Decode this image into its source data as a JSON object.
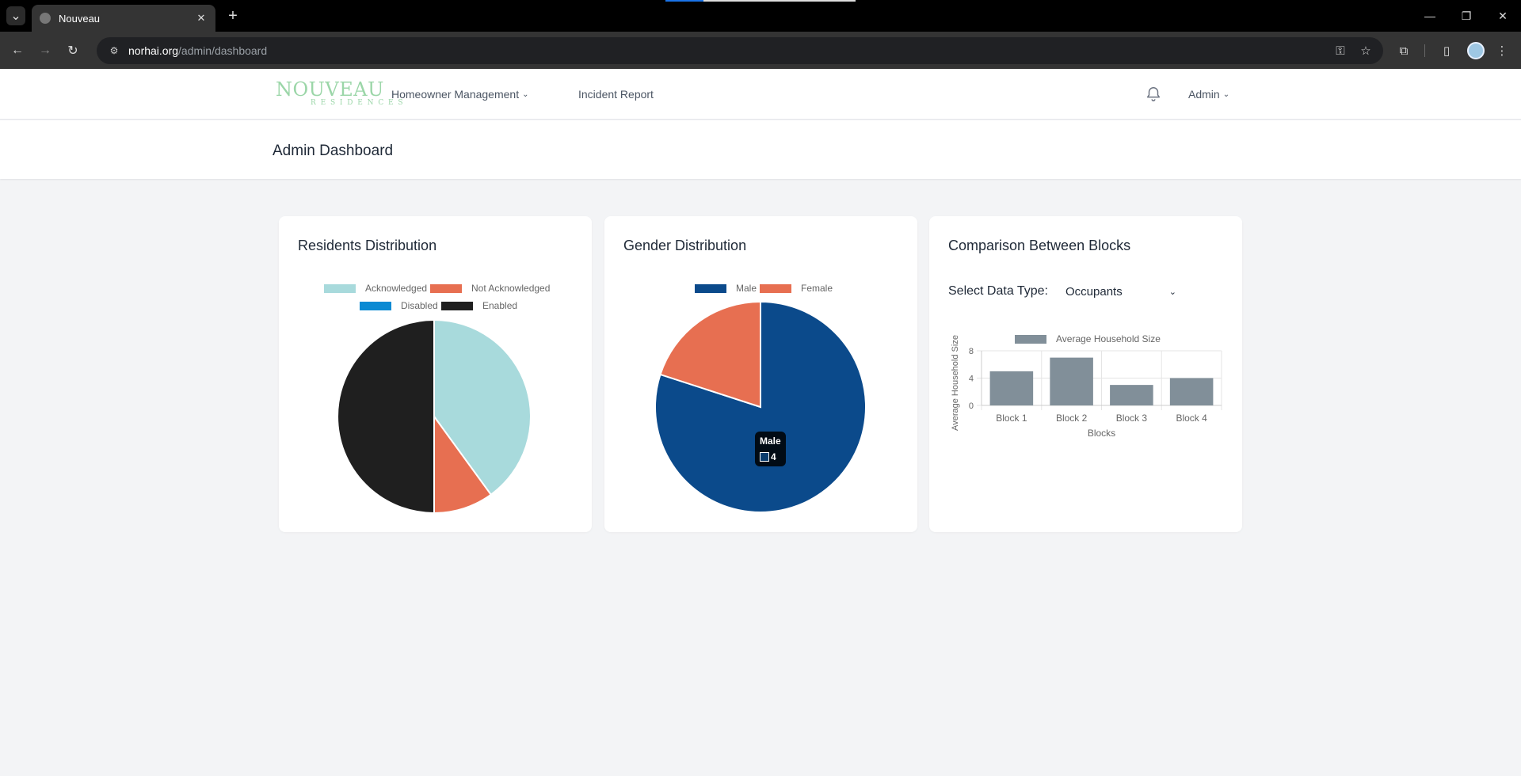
{
  "browser": {
    "tab_title": "Nouveau",
    "url_host": "norhai.org",
    "url_path": "/admin/dashboard",
    "icons": [
      "tab-search-icon",
      "close-icon",
      "plus-icon",
      "minimize-icon",
      "restore-icon",
      "back-icon",
      "forward-icon",
      "reload-icon",
      "site-info-icon",
      "password-key-icon",
      "star-icon",
      "extensions-icon",
      "side-panel-icon",
      "profile-avatar",
      "more-menu-icon"
    ]
  },
  "header": {
    "logo_main": "NOUVEAU",
    "logo_sub": "RESIDENCES",
    "nav": [
      {
        "label": "Homeowner Management",
        "has_dropdown": true
      },
      {
        "label": "Incident Report",
        "has_dropdown": false
      }
    ],
    "user_menu": "Admin",
    "icons": [
      "bell-icon",
      "chevron-down-icon"
    ]
  },
  "page": {
    "title": "Admin Dashboard"
  },
  "cards": {
    "residents": {
      "title": "Residents Distribution",
      "legend": [
        {
          "label": "Acknowledged",
          "color": "#a8dadc"
        },
        {
          "label": "Not Acknowledged",
          "color": "#e76f51"
        },
        {
          "label": "Disabled",
          "color": "#0b8ad3"
        },
        {
          "label": "Enabled",
          "color": "#1f1f1f"
        }
      ]
    },
    "gender": {
      "title": "Gender Distribution",
      "legend": [
        {
          "label": "Male",
          "color": "#0b4a8b"
        },
        {
          "label": "Female",
          "color": "#e76f51"
        }
      ],
      "tooltip": {
        "title": "Male",
        "value": "4"
      }
    },
    "blocks": {
      "title": "Comparison Between Blocks",
      "select_label": "Select Data Type:",
      "select_value": "Occupants",
      "legend_label": "Average Household Size",
      "bar_color": "#818f99"
    }
  },
  "chart_data": [
    {
      "type": "pie",
      "title": "Residents Distribution",
      "labels": [
        "Acknowledged",
        "Not Acknowledged",
        "Disabled",
        "Enabled"
      ],
      "values": [
        4,
        1,
        0,
        5
      ],
      "colors": [
        "#a8dadc",
        "#e76f51",
        "#0b8ad3",
        "#1f1f1f"
      ],
      "legend": "top"
    },
    {
      "type": "pie",
      "title": "Gender Distribution",
      "labels": [
        "Male",
        "Female"
      ],
      "values": [
        4,
        1
      ],
      "colors": [
        "#0b4a8b",
        "#e76f51"
      ],
      "legend": "top"
    },
    {
      "type": "bar",
      "title": "Comparison Between Blocks",
      "categories": [
        "Block 1",
        "Block 2",
        "Block 3",
        "Block 4"
      ],
      "series": [
        {
          "name": "Average Household Size",
          "values": [
            5,
            7,
            3,
            4
          ]
        }
      ],
      "xlabel": "Blocks",
      "ylabel": "Average Household Size",
      "ylim": [
        0,
        8
      ],
      "yticks": [
        0,
        4,
        8
      ],
      "grid": true,
      "legend": "top"
    }
  ]
}
